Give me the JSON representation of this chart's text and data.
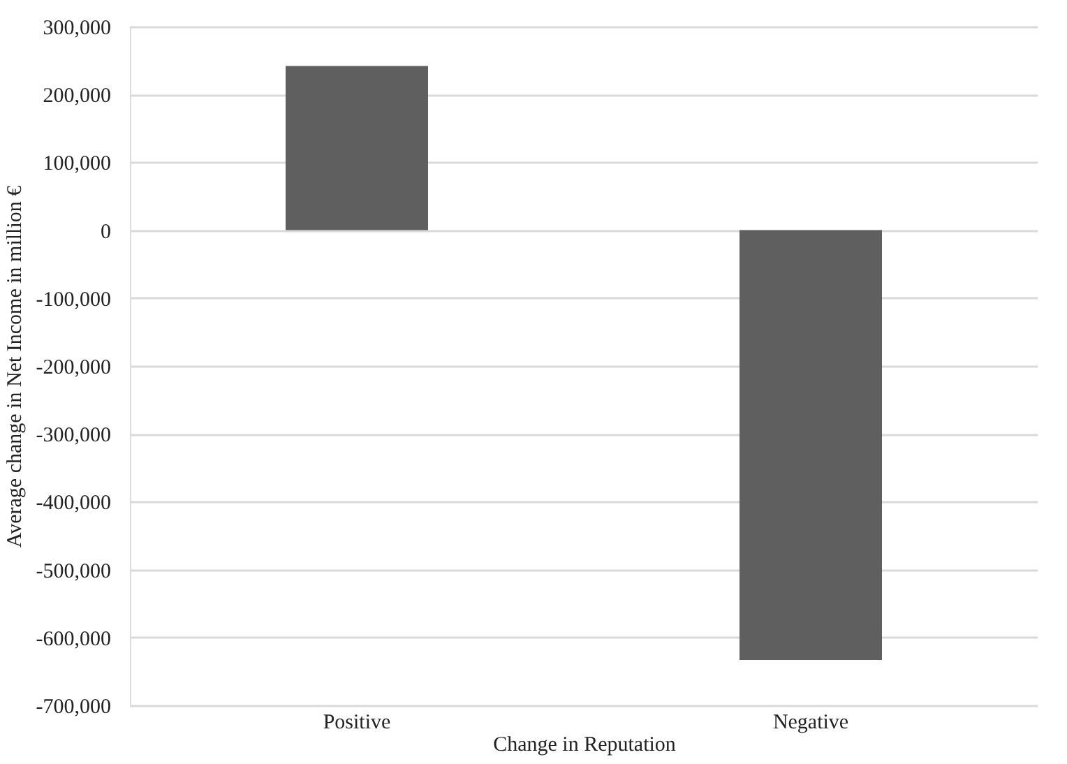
{
  "chart_data": {
    "type": "bar",
    "xlabel": "Change in Reputation",
    "ylabel": "Average  change in Net Income in million €",
    "categories": [
      "Positive",
      "Negative"
    ],
    "values": [
      242000,
      -633000
    ],
    "color": "#5f5f5f",
    "ylim": [
      -700000,
      300000
    ],
    "yticks": [
      {
        "value": -700000,
        "label": "-700,000"
      },
      {
        "value": -600000,
        "label": "-600,000"
      },
      {
        "value": -500000,
        "label": "-500,000"
      },
      {
        "value": -400000,
        "label": "-400,000"
      },
      {
        "value": -300000,
        "label": "-300,000"
      },
      {
        "value": -200000,
        "label": "-200,000"
      },
      {
        "value": -100000,
        "label": "-100,000"
      },
      0,
      {
        "value": 100000,
        "label": "100,000"
      },
      {
        "value": 200000,
        "label": "200,000"
      },
      {
        "value": 300000,
        "label": "300,000"
      }
    ],
    "grid": "y"
  }
}
